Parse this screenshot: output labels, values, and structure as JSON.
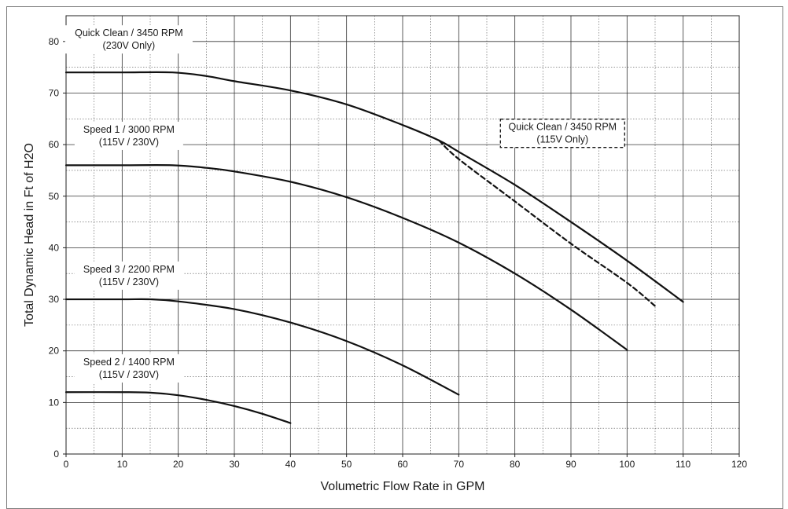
{
  "chart_data": {
    "type": "line",
    "title": "",
    "xlabel": "Volumetric Flow Rate in GPM",
    "ylabel": "Total Dynamic Head in Ft of H2O",
    "xlim": [
      0,
      120
    ],
    "ylim": [
      0,
      85
    ],
    "xticks": [
      0,
      10,
      20,
      30,
      40,
      50,
      60,
      70,
      80,
      90,
      100,
      110,
      120
    ],
    "yticks": [
      0,
      10,
      20,
      30,
      40,
      50,
      60,
      70,
      80
    ],
    "grid": true,
    "series": [
      {
        "name": "Quick Clean / 3450 RPM (230V Only)",
        "label_lines": [
          "Quick Clean / 3450 RPM",
          "(230V Only)"
        ],
        "style": "solid",
        "x": [
          0,
          10,
          19,
          25,
          30,
          40,
          50,
          60,
          66.5,
          70,
          80,
          90,
          100,
          110
        ],
        "y": [
          74,
          74,
          74,
          73.3,
          72.3,
          70.5,
          67.8,
          63.8,
          60.8,
          58.6,
          52.2,
          45,
          37.5,
          29.5
        ]
      },
      {
        "name": "Quick Clean / 3450 RPM (115V Only)",
        "label_lines": [
          "Quick Clean / 3450 RPM",
          "(115V Only)"
        ],
        "style": "dashed",
        "x": [
          66.5,
          70,
          80,
          90,
          100,
          105
        ],
        "y": [
          60.8,
          57.2,
          49,
          40.8,
          33.2,
          28.7
        ]
      },
      {
        "name": "Speed 1 / 3000 RPM (115V / 230V)",
        "label_lines": [
          "Speed 1 / 3000 RPM",
          "(115V / 230V)"
        ],
        "style": "solid",
        "x": [
          0,
          10,
          19,
          25,
          30,
          40,
          50,
          60,
          70,
          80,
          90,
          100
        ],
        "y": [
          56,
          56,
          56,
          55.5,
          54.8,
          52.8,
          49.8,
          45.8,
          41,
          35,
          28,
          20.2
        ]
      },
      {
        "name": "Speed 3 / 2200 RPM (115V / 230V)",
        "label_lines": [
          "Speed 3 / 2200 RPM",
          "(115V / 230V)"
        ],
        "style": "solid",
        "x": [
          0,
          10,
          15,
          20,
          30,
          40,
          50,
          60,
          70
        ],
        "y": [
          30,
          30,
          30,
          29.6,
          28.1,
          25.5,
          21.9,
          17.2,
          11.5
        ]
      },
      {
        "name": "Speed 2 / 1400 RPM (115V / 230V)",
        "label_lines": [
          "Speed 2 / 1400 RPM",
          "(115V / 230V)"
        ],
        "style": "solid",
        "x": [
          0,
          10,
          15,
          20,
          25,
          30,
          35,
          40
        ],
        "y": [
          12,
          12,
          11.9,
          11.4,
          10.5,
          9.3,
          7.8,
          6
        ]
      }
    ]
  }
}
